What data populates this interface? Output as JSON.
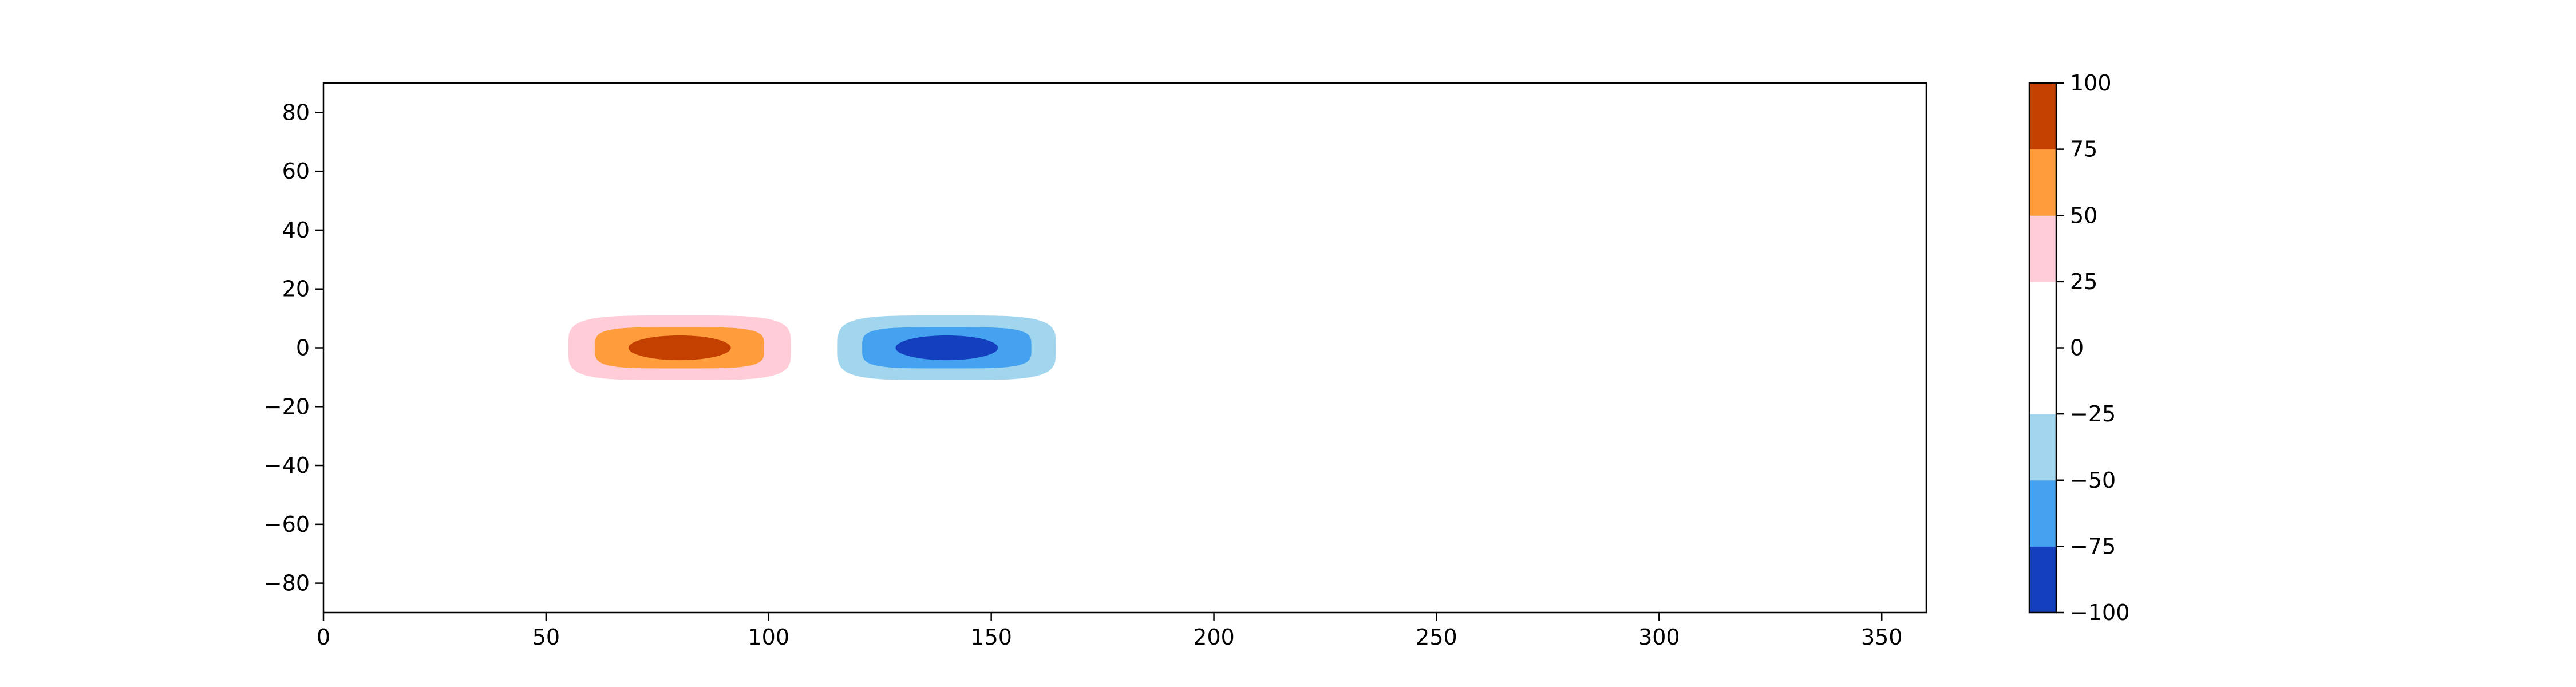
{
  "chart_data": {
    "type": "contourf",
    "title": "",
    "xlabel": "",
    "ylabel": "",
    "xlim": [
      0,
      360
    ],
    "ylim": [
      -90,
      90
    ],
    "x_ticks": [
      0,
      50,
      100,
      150,
      200,
      250,
      300,
      350
    ],
    "y_ticks": [
      -80,
      -60,
      -40,
      -20,
      0,
      20,
      40,
      60,
      80
    ],
    "grid": false,
    "blobs": [
      {
        "center": [
          80,
          0
        ],
        "sign": "positive",
        "rings": [
          {
            "level": [
              25,
              50
            ],
            "half_width": [
              25,
              11
            ]
          },
          {
            "level": [
              50,
              75
            ],
            "half_width": [
              19,
              7
            ]
          },
          {
            "level": [
              75,
              100
            ],
            "half_width": [
              11.5,
              4.2
            ]
          }
        ]
      },
      {
        "center": [
          140,
          0
        ],
        "sign": "negative",
        "rings": [
          {
            "level": [
              -50,
              -25
            ],
            "half_width": [
              24.5,
              11
            ]
          },
          {
            "level": [
              -75,
              -50
            ],
            "half_width": [
              19,
              7
            ]
          },
          {
            "level": [
              -100,
              -75
            ],
            "half_width": [
              11.5,
              4.2
            ]
          }
        ]
      }
    ],
    "colorbar": {
      "levels": [
        -100,
        -75,
        -50,
        -25,
        0,
        25,
        50,
        75,
        100
      ],
      "tick_labels": [
        "−100",
        "−75",
        "−50",
        "−25",
        "0",
        "25",
        "50",
        "75",
        "100"
      ],
      "colors": [
        "#1440c0",
        "#44a2f0",
        "#a2d6ee",
        "#ffffff",
        "#ffffff",
        "#ffccd8",
        "#ff9c3c",
        "#c44000"
      ]
    }
  }
}
